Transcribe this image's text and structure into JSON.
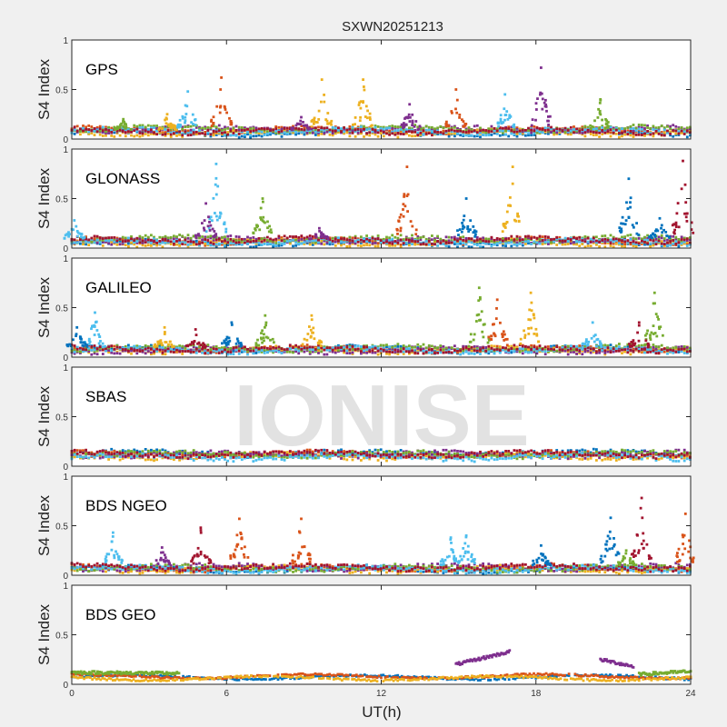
{
  "chart_data": {
    "type": "scatter",
    "title": "SXWN20251213",
    "xlabel": "UT(h)",
    "ylabel": "S4 Index",
    "xlim": [
      0,
      24
    ],
    "ylim": [
      0,
      1
    ],
    "xticks": [
      "0",
      "6",
      "12",
      "18",
      "24"
    ],
    "yticks": [
      "0",
      "0.5",
      "1"
    ],
    "watermark": "IONISE",
    "colors": [
      "#0072BD",
      "#D95319",
      "#EDB120",
      "#7E2F8E",
      "#77AC30",
      "#4DBEEE",
      "#A2142F"
    ],
    "panels": [
      {
        "label": "GPS",
        "baseline": [
          0.06,
          0.09,
          0.06,
          0.1,
          0.1,
          0.08,
          0.08
        ],
        "spikes": [
          [
            4.5,
            0.48,
            5
          ],
          [
            5.8,
            0.62,
            1
          ],
          [
            9.7,
            0.6,
            2
          ],
          [
            11.3,
            0.6,
            2
          ],
          [
            14.9,
            0.5,
            1
          ],
          [
            16.8,
            0.45,
            5
          ],
          [
            18.2,
            0.72,
            3
          ],
          [
            20.5,
            0.4,
            4
          ],
          [
            13.1,
            0.35,
            3
          ],
          [
            3.7,
            0.25,
            2
          ],
          [
            2.0,
            0.2,
            4
          ],
          [
            8.9,
            0.22,
            3
          ]
        ],
        "segments": []
      },
      {
        "label": "GLONASS",
        "baseline": [
          0.05,
          0.07,
          0.05,
          0.08,
          0.09,
          0.06,
          0.08
        ],
        "spikes": [
          [
            5.6,
            0.85,
            5
          ],
          [
            7.4,
            0.5,
            4
          ],
          [
            13.0,
            0.82,
            1
          ],
          [
            15.3,
            0.5,
            0
          ],
          [
            17.1,
            0.82,
            2
          ],
          [
            21.6,
            0.7,
            0
          ],
          [
            23.7,
            0.88,
            6
          ],
          [
            5.2,
            0.45,
            3
          ],
          [
            9.6,
            0.2,
            3
          ],
          [
            22.8,
            0.3,
            0
          ],
          [
            0.1,
            0.28,
            5
          ]
        ],
        "segments": []
      },
      {
        "label": "GALILEO",
        "baseline": [
          0.08,
          0.08,
          0.07,
          0.07,
          0.09,
          0.07,
          0.08
        ],
        "spikes": [
          [
            0.9,
            0.45,
            5
          ],
          [
            7.5,
            0.42,
            4
          ],
          [
            9.3,
            0.42,
            2
          ],
          [
            15.8,
            0.7,
            4
          ],
          [
            17.8,
            0.65,
            2
          ],
          [
            16.5,
            0.58,
            1
          ],
          [
            22.6,
            0.65,
            4
          ],
          [
            20.2,
            0.35,
            5
          ],
          [
            22.0,
            0.35,
            6
          ],
          [
            6.2,
            0.35,
            0
          ],
          [
            3.6,
            0.3,
            2
          ],
          [
            4.8,
            0.28,
            6
          ],
          [
            0.2,
            0.3,
            0
          ]
        ],
        "segments": []
      },
      {
        "label": "SBAS",
        "baseline": [
          0.13,
          0.12,
          0.1,
          0.12,
          0.12,
          0.09,
          0.12
        ],
        "spikes": [],
        "segments": []
      },
      {
        "label": "BDS NGEO",
        "baseline": [
          0.06,
          0.07,
          0.06,
          0.08,
          0.07,
          0.06,
          0.08
        ],
        "spikes": [
          [
            1.6,
            0.43,
            5
          ],
          [
            5.0,
            0.48,
            6
          ],
          [
            6.5,
            0.57,
            1
          ],
          [
            8.9,
            0.57,
            1
          ],
          [
            14.7,
            0.38,
            5
          ],
          [
            15.3,
            0.4,
            5
          ],
          [
            20.9,
            0.58,
            0
          ],
          [
            22.1,
            0.78,
            6
          ],
          [
            23.8,
            0.62,
            1
          ],
          [
            3.5,
            0.28,
            3
          ],
          [
            18.2,
            0.3,
            0
          ],
          [
            21.5,
            0.25,
            4
          ]
        ],
        "segments": []
      },
      {
        "label": "BDS GEO",
        "baseline": [
          0.07,
          0.08,
          0.06,
          null,
          null,
          null,
          null
        ],
        "spikes": [],
        "segments": [
          [
            3,
            14.9,
            17.0,
            0.2,
            0.33
          ],
          [
            3,
            20.5,
            21.8,
            0.25,
            0.18
          ],
          [
            4,
            0,
            4.2,
            0.12,
            0.11
          ],
          [
            4,
            22.0,
            24,
            0.1,
            0.13
          ]
        ]
      }
    ]
  }
}
